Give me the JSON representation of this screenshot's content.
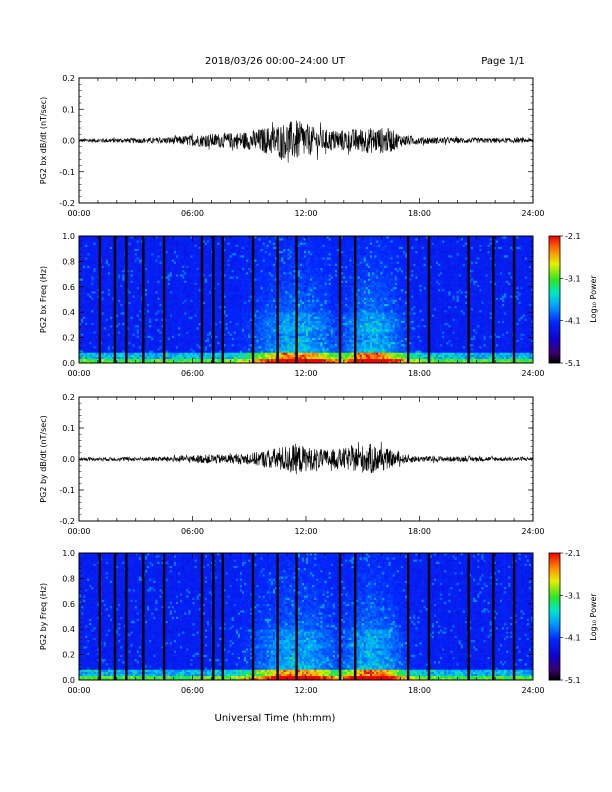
{
  "header": {
    "title": "2018/03/26  00:00–24:00 UT",
    "page": "Page 1/1"
  },
  "xaxis": {
    "tick_labels": [
      "00:00",
      "06:00",
      "12:00",
      "18:00",
      "24:00"
    ],
    "label": "Universal Time (hh:mm)"
  },
  "colorbar": {
    "label": "Log₁₀ Power",
    "tick_labels": [
      "-2.1",
      "-3.1",
      "-4.1",
      "-5.1"
    ]
  },
  "chart_data": [
    {
      "type": "line",
      "ylabel": "PG2 bx dB/dt (nT/sec)",
      "xlim": [
        0,
        24
      ],
      "ylim": [
        -0.2,
        0.2
      ],
      "ytick_labels": [
        "0.2",
        "0.1",
        "0.0",
        "-0.1",
        "-0.2"
      ],
      "envelope": [
        {
          "x": 0,
          "amp": 0.006
        },
        {
          "x": 2,
          "amp": 0.007
        },
        {
          "x": 4,
          "amp": 0.009
        },
        {
          "x": 5,
          "amp": 0.012
        },
        {
          "x": 6,
          "amp": 0.018
        },
        {
          "x": 7,
          "amp": 0.022
        },
        {
          "x": 8,
          "amp": 0.025
        },
        {
          "x": 9,
          "amp": 0.03
        },
        {
          "x": 10,
          "amp": 0.045
        },
        {
          "x": 10.5,
          "amp": 0.052
        },
        {
          "x": 11,
          "amp": 0.06
        },
        {
          "x": 11.5,
          "amp": 0.065
        },
        {
          "x": 12,
          "amp": 0.055
        },
        {
          "x": 12.5,
          "amp": 0.04
        },
        {
          "x": 13,
          "amp": 0.035
        },
        {
          "x": 14,
          "amp": 0.035
        },
        {
          "x": 15,
          "amp": 0.04
        },
        {
          "x": 16,
          "amp": 0.042
        },
        {
          "x": 16.5,
          "amp": 0.038
        },
        {
          "x": 17,
          "amp": 0.02
        },
        {
          "x": 18,
          "amp": 0.012
        },
        {
          "x": 20,
          "amp": 0.009
        },
        {
          "x": 22,
          "amp": 0.008
        },
        {
          "x": 24,
          "amp": 0.007
        }
      ]
    },
    {
      "type": "heatmap",
      "ylabel": "PG2 bx Freq (Hz)",
      "xlim": [
        0,
        24
      ],
      "ylim": [
        0,
        1.0
      ],
      "ytick_labels": [
        "1.0",
        "0.8",
        "0.6",
        "0.4",
        "0.2",
        "0.0"
      ],
      "zlim": [
        -5.1,
        -2.1
      ],
      "data_gaps_hours": [
        1.1,
        1.9,
        2.5,
        3.4,
        4.5,
        6.5,
        7.1,
        7.6,
        9.2,
        10.5,
        11.5,
        13.8,
        14.6,
        17.4,
        18.5,
        20.6,
        21.9,
        23.0
      ]
    },
    {
      "type": "line",
      "ylabel": "PG2 by dB/dt (nT/sec)",
      "xlim": [
        0,
        24
      ],
      "ylim": [
        -0.2,
        0.2
      ],
      "ytick_labels": [
        "0.2",
        "0.1",
        "0.0",
        "-0.1",
        "-0.2"
      ],
      "envelope": [
        {
          "x": 0,
          "amp": 0.005
        },
        {
          "x": 2,
          "amp": 0.006
        },
        {
          "x": 4,
          "amp": 0.007
        },
        {
          "x": 5,
          "amp": 0.009
        },
        {
          "x": 6,
          "amp": 0.012
        },
        {
          "x": 7,
          "amp": 0.015
        },
        {
          "x": 8,
          "amp": 0.015
        },
        {
          "x": 9,
          "amp": 0.018
        },
        {
          "x": 10,
          "amp": 0.03
        },
        {
          "x": 11,
          "amp": 0.045
        },
        {
          "x": 11.5,
          "amp": 0.05
        },
        {
          "x": 12,
          "amp": 0.04
        },
        {
          "x": 13,
          "amp": 0.03
        },
        {
          "x": 14,
          "amp": 0.035
        },
        {
          "x": 15,
          "amp": 0.045
        },
        {
          "x": 15.5,
          "amp": 0.05
        },
        {
          "x": 16,
          "amp": 0.04
        },
        {
          "x": 17,
          "amp": 0.015
        },
        {
          "x": 18,
          "amp": 0.01
        },
        {
          "x": 20,
          "amp": 0.008
        },
        {
          "x": 22,
          "amp": 0.007
        },
        {
          "x": 24,
          "amp": 0.006
        }
      ]
    },
    {
      "type": "heatmap",
      "ylabel": "PG2 by Freq (Hz)",
      "xlim": [
        0,
        24
      ],
      "ylim": [
        0,
        1.0
      ],
      "ytick_labels": [
        "1.0",
        "0.8",
        "0.6",
        "0.4",
        "0.2",
        "0.0"
      ],
      "zlim": [
        -5.1,
        -2.1
      ],
      "data_gaps_hours": [
        1.1,
        1.9,
        2.5,
        3.4,
        4.5,
        6.5,
        7.1,
        7.6,
        9.2,
        10.5,
        11.5,
        13.8,
        14.6,
        17.4,
        18.5,
        20.6,
        21.9,
        23.0
      ]
    }
  ]
}
